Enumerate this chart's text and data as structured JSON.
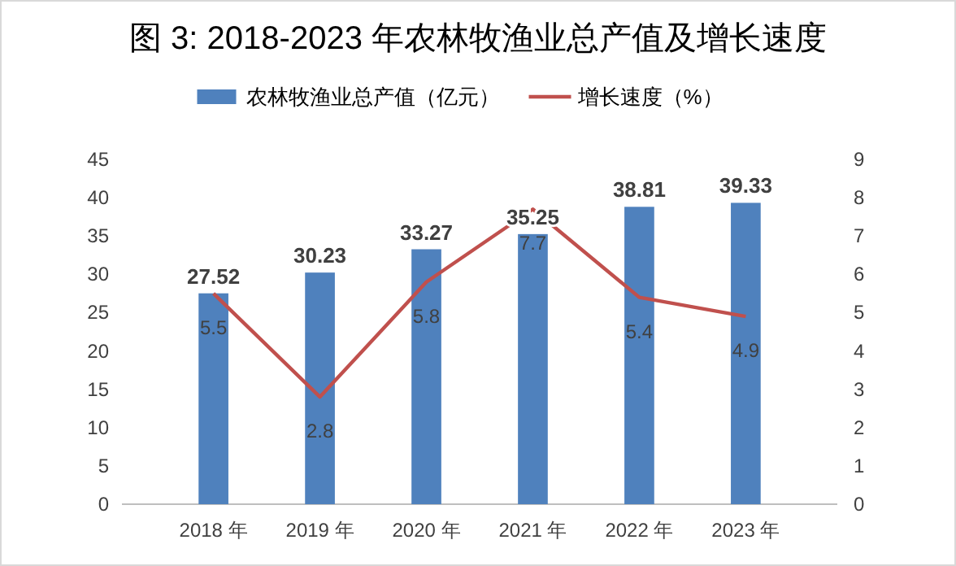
{
  "chart_data": {
    "type": "bar",
    "title": "图 3: 2018-2023 年农林牧渔业总产值及增长速度",
    "categories": [
      "2018 年",
      "2019 年",
      "2020 年",
      "2021 年",
      "2022 年",
      "2023 年"
    ],
    "series": [
      {
        "name": "农林牧渔业总产值（亿元）",
        "color": "#4f81bd",
        "values": [
          27.52,
          30.23,
          33.27,
          35.25,
          38.81,
          39.33
        ]
      },
      {
        "name": "增长速度（%）",
        "type": "line",
        "axis": "y2",
        "color": "#c0504d",
        "values": [
          5.5,
          2.8,
          5.8,
          7.7,
          5.4,
          4.9
        ]
      }
    ],
    "ylim": [
      0,
      45
    ],
    "yticks": [
      0,
      5,
      10,
      15,
      20,
      25,
      30,
      35,
      40,
      45
    ],
    "y2lim": [
      0,
      9
    ],
    "y2ticks": [
      0,
      1,
      2,
      3,
      4,
      5,
      6,
      7,
      8,
      9
    ],
    "data_labels": true,
    "legend": "top",
    "grid": false,
    "marker": "none"
  }
}
